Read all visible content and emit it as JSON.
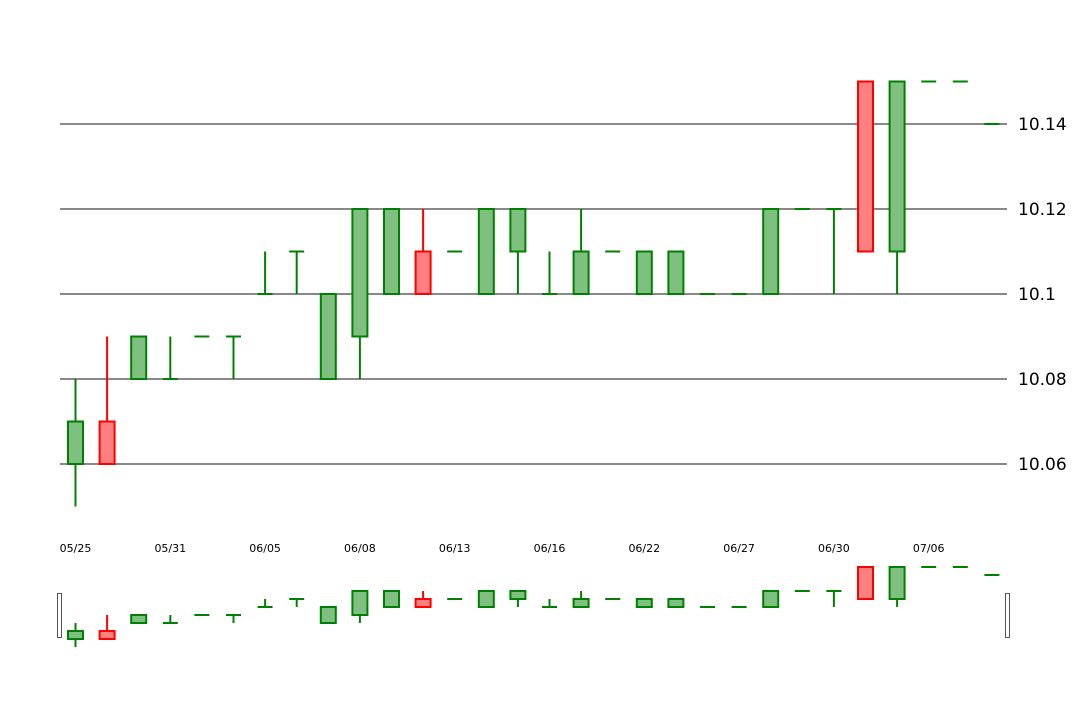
{
  "chart_data": {
    "type": "candlestick",
    "title": "",
    "xlabel": "",
    "ylabel": "",
    "ylim": [
      10.045,
      10.165
    ],
    "yticks": [
      "10.06",
      "10.08",
      "10.1",
      "10.12",
      "10.14"
    ],
    "xticks": [
      "05/25",
      "05/31",
      "06/05",
      "06/08",
      "06/13",
      "06/16",
      "06/22",
      "06/27",
      "06/30",
      "07/06"
    ],
    "grid": true,
    "up_color": "#008000",
    "up_fill": "#7fbf7f",
    "down_color": "#ff0000",
    "down_fill": "#ff8080",
    "series": [
      {
        "open": 10.06,
        "high": 10.08,
        "low": 10.05,
        "close": 10.07
      },
      {
        "open": 10.07,
        "high": 10.09,
        "low": 10.06,
        "close": 10.06
      },
      {
        "open": 10.08,
        "high": 10.09,
        "low": 10.08,
        "close": 10.09
      },
      {
        "open": 10.08,
        "high": 10.09,
        "low": 10.08,
        "close": 10.08
      },
      {
        "open": 10.09,
        "high": 10.09,
        "low": 10.09,
        "close": 10.09
      },
      {
        "open": 10.09,
        "high": 10.09,
        "low": 10.08,
        "close": 10.09
      },
      {
        "open": 10.1,
        "high": 10.11,
        "low": 10.1,
        "close": 10.1
      },
      {
        "open": 10.11,
        "high": 10.11,
        "low": 10.1,
        "close": 10.11
      },
      {
        "open": 10.08,
        "high": 10.1,
        "low": 10.08,
        "close": 10.1
      },
      {
        "open": 10.09,
        "high": 10.12,
        "low": 10.08,
        "close": 10.12
      },
      {
        "open": 10.1,
        "high": 10.12,
        "low": 10.1,
        "close": 10.12
      },
      {
        "open": 10.11,
        "high": 10.12,
        "low": 10.1,
        "close": 10.1
      },
      {
        "open": 10.11,
        "high": 10.11,
        "low": 10.11,
        "close": 10.11
      },
      {
        "open": 10.1,
        "high": 10.12,
        "low": 10.1,
        "close": 10.12
      },
      {
        "open": 10.11,
        "high": 10.12,
        "low": 10.1,
        "close": 10.12
      },
      {
        "open": 10.1,
        "high": 10.11,
        "low": 10.1,
        "close": 10.1
      },
      {
        "open": 10.1,
        "high": 10.12,
        "low": 10.1,
        "close": 10.11
      },
      {
        "open": 10.11,
        "high": 10.11,
        "low": 10.11,
        "close": 10.11
      },
      {
        "open": 10.1,
        "high": 10.11,
        "low": 10.1,
        "close": 10.11
      },
      {
        "open": 10.1,
        "high": 10.11,
        "low": 10.1,
        "close": 10.11
      },
      {
        "open": 10.1,
        "high": 10.1,
        "low": 10.1,
        "close": 10.1
      },
      {
        "open": 10.1,
        "high": 10.1,
        "low": 10.1,
        "close": 10.1
      },
      {
        "open": 10.1,
        "high": 10.12,
        "low": 10.1,
        "close": 10.12
      },
      {
        "open": 10.12,
        "high": 10.12,
        "low": 10.12,
        "close": 10.12
      },
      {
        "open": 10.12,
        "high": 10.12,
        "low": 10.1,
        "close": 10.12
      },
      {
        "open": 10.15,
        "high": 10.15,
        "low": 10.11,
        "close": 10.11
      },
      {
        "open": 10.11,
        "high": 10.15,
        "low": 10.1,
        "close": 10.15
      },
      {
        "open": 10.15,
        "high": 10.15,
        "low": 10.15,
        "close": 10.15
      },
      {
        "open": 10.15,
        "high": 10.15,
        "low": 10.15,
        "close": 10.15
      },
      {
        "open": 10.14,
        "high": 10.14,
        "low": 10.14,
        "close": 10.14
      }
    ]
  }
}
